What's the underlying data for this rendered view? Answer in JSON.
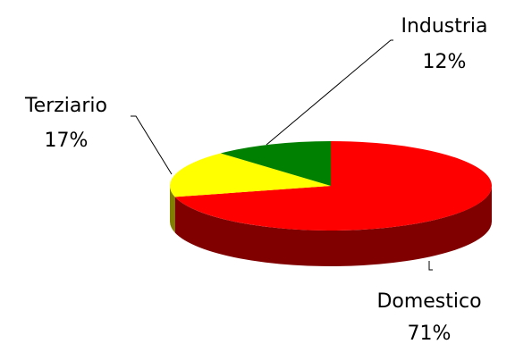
{
  "chart_data": {
    "type": "pie",
    "categories": [
      "Domestico",
      "Terziario",
      "Industria"
    ],
    "values": [
      71,
      17,
      12
    ],
    "labels": [
      {
        "name": "Domestico",
        "pct": "71%"
      },
      {
        "name": "Terziario",
        "pct": "17%"
      },
      {
        "name": "Industria",
        "pct": "12%"
      }
    ],
    "colors": {
      "Domestico": {
        "top": "#ff0000",
        "side": "#800000"
      },
      "Terziario": {
        "top": "#ffff00",
        "side": "#808000"
      },
      "Industria": {
        "top": "#008000",
        "side": "#004000"
      }
    },
    "style": "3d",
    "legend": "none"
  }
}
